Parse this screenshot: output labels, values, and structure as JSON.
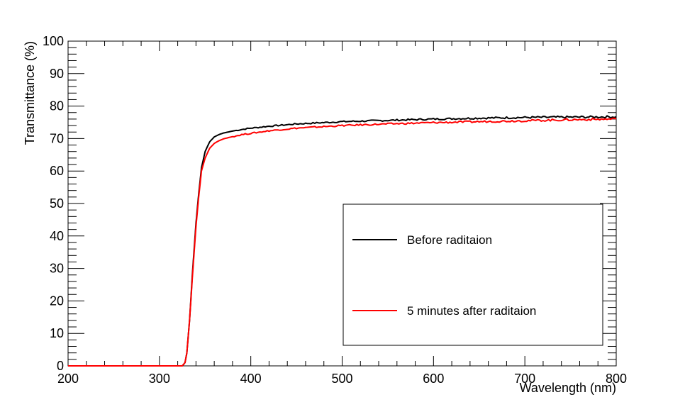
{
  "chart_data": {
    "type": "line",
    "title": "",
    "xlabel": "Wavelength (nm)",
    "ylabel": "Transmittance (%)",
    "xlim": [
      200,
      800
    ],
    "ylim": [
      0,
      100
    ],
    "x_ticks": [
      "200",
      "300",
      "400",
      "500",
      "600",
      "700",
      "800"
    ],
    "y_ticks": [
      "0",
      "10",
      "20",
      "30",
      "40",
      "50",
      "60",
      "70",
      "80",
      "90",
      "100"
    ],
    "grid": false,
    "legend_position": "bottom-right",
    "series": [
      {
        "name": "Before raditaion",
        "color": "#000000",
        "x": [
          200,
          320,
          325,
          328,
          330,
          333,
          336,
          340,
          343,
          346,
          350,
          355,
          360,
          365,
          370,
          380,
          390,
          400,
          420,
          450,
          500,
          550,
          600,
          650,
          700,
          750,
          800
        ],
        "y": [
          0,
          0,
          0,
          1,
          4,
          14,
          28,
          44,
          53,
          61,
          66,
          69,
          70.5,
          71.2,
          71.7,
          72.3,
          72.8,
          73.2,
          73.8,
          74.5,
          75.2,
          75.6,
          76.0,
          76.3,
          76.5,
          76.6,
          76.7
        ]
      },
      {
        "name": "5 minutes after raditaion",
        "color": "#ff0000",
        "x": [
          200,
          320,
          325,
          328,
          330,
          333,
          336,
          340,
          343,
          346,
          350,
          355,
          360,
          365,
          370,
          380,
          390,
          400,
          420,
          450,
          500,
          550,
          600,
          650,
          700,
          750,
          800
        ],
        "y": [
          0,
          0,
          0,
          1,
          4,
          14,
          27,
          43,
          52,
          60,
          64,
          67,
          68.5,
          69.3,
          69.9,
          70.6,
          71.2,
          71.6,
          72.4,
          73.2,
          74.0,
          74.5,
          74.9,
          75.2,
          75.5,
          75.8,
          76.0
        ]
      }
    ]
  }
}
